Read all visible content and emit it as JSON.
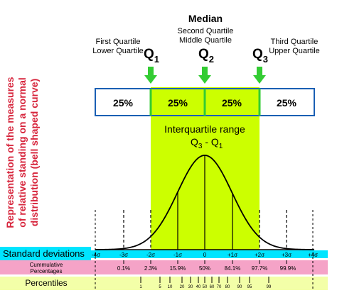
{
  "side_title": {
    "line1": "Representation of the measures",
    "line2": "of relative standing on a normal",
    "line3": "distribution (bell shaped curve)"
  },
  "quartiles": {
    "q1": {
      "name1": "First Quartile",
      "name2": "Lower Quartile",
      "symbol": "Q",
      "sub": "1"
    },
    "q2": {
      "heading": "Median",
      "name1": "Second Quartile",
      "name2": "Middle Quartile",
      "symbol": "Q",
      "sub": "2"
    },
    "q3": {
      "name1": "Third Quartile",
      "name2": "Upper Quartile",
      "symbol": "Q",
      "sub": "3"
    }
  },
  "quarter_boxes": [
    "25%",
    "25%",
    "25%",
    "25%"
  ],
  "iqr": {
    "label": "Interquartile range",
    "formula_q3": "Q",
    "formula_q3_sub": "3",
    "formula_minus": " - Q",
    "formula_q1_sub": "1"
  },
  "rows": {
    "std_label": "Standard deviations",
    "cum_label_line1": "Cummulative",
    "cum_label_line2": "Percentages",
    "pct_label": "Percentiles"
  },
  "sigma_ticks": [
    "-4σ",
    "-3σ",
    "-2σ",
    "-1σ",
    "0",
    "+1σ",
    "+2σ",
    "+3σ",
    "+4σ"
  ],
  "cumulative_values": [
    "0.1%",
    "2.3%",
    "15.9%",
    "50%",
    "84.1%",
    "97.7%",
    "99.9%"
  ],
  "percentile_ticks": [
    "1",
    "5",
    "10",
    "20",
    "30",
    "40",
    "50",
    "60",
    "70",
    "80",
    "90",
    "95",
    "99"
  ],
  "colors": {
    "iqr_fill": "#ccff00",
    "arrow_green": "#33cc33",
    "box_border": "#1a5fb4",
    "std_row": "#00e5ff",
    "cum_row": "#f5a3c7",
    "pct_row": "#f3ffa8",
    "side_title": "#d7263d"
  }
}
